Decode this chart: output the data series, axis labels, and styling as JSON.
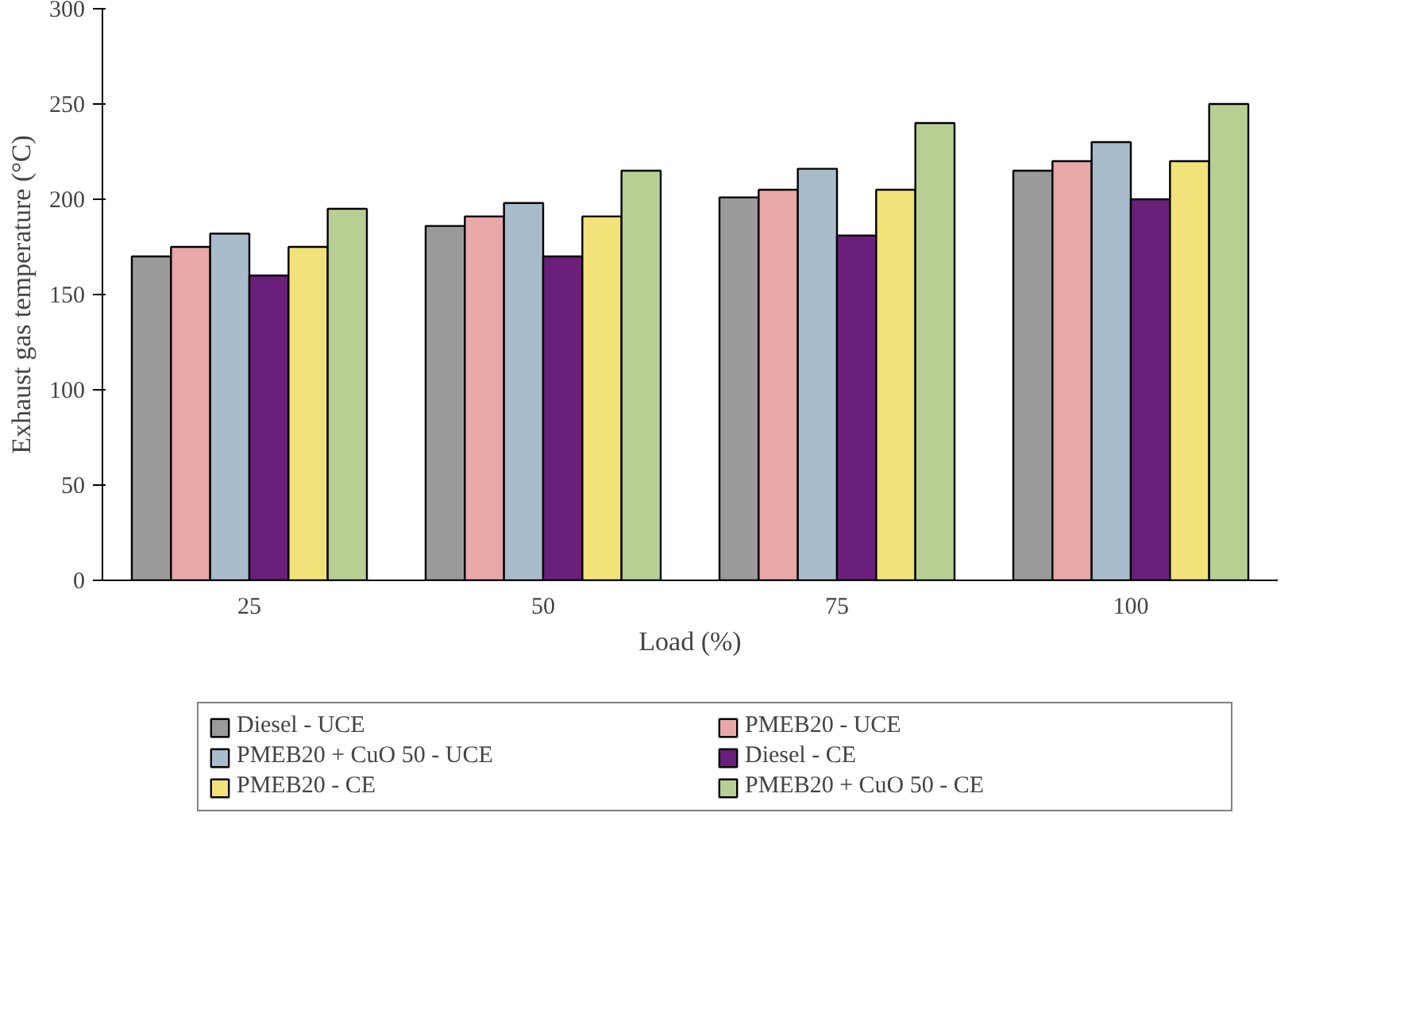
{
  "chart_data": {
    "type": "bar",
    "xlabel": "Load (%)",
    "ylabel": "Exhaust gas temperature (°C)",
    "categories": [
      "25",
      "50",
      "75",
      "100"
    ],
    "series": [
      {
        "name": "Diesel - UCE",
        "color": "#9a9a9a",
        "values": [
          170,
          186,
          201,
          215
        ]
      },
      {
        "name": "PMEB20 - UCE",
        "color": "#e8a8a8",
        "values": [
          175,
          191,
          205,
          220
        ]
      },
      {
        "name": "PMEB20 + CuO 50 - UCE",
        "color": "#a9bccb",
        "values": [
          182,
          198,
          216,
          230
        ]
      },
      {
        "name": "Diesel - CE",
        "color": "#6a1f7a",
        "values": [
          160,
          170,
          181,
          200
        ]
      },
      {
        "name": "PMEB20 - CE",
        "color": "#f2e27a",
        "values": [
          175,
          191,
          205,
          220
        ]
      },
      {
        "name": "PMEB20 + CuO 50 - CE",
        "color": "#b8cf94",
        "values": [
          195,
          215,
          240,
          250
        ]
      }
    ],
    "ylim": [
      0,
      300
    ],
    "yticks": [
      0,
      50,
      100,
      150,
      200,
      250,
      300
    ],
    "grid": false,
    "legend": "bottom"
  }
}
